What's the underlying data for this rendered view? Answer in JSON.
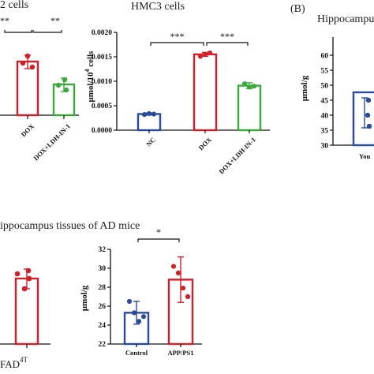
{
  "panel_labels": {
    "b": "(B)"
  },
  "top_left": {
    "title_fragment": "2 cells",
    "x_labels": [
      "DOX",
      "DOX+LDH-IN-1"
    ]
  },
  "hippocampus_fragment": {
    "title": "Hippocampus",
    "y_ticks": [
      "60",
      "55",
      "50",
      "45",
      "40",
      "35",
      "30"
    ],
    "ylabel": "μmol/g",
    "x_label": "You"
  },
  "bottom_left": {
    "title_fragment": "ippocampus tissues of AD mice",
    "x_label_base": "FAD",
    "x_label_sup": "4T"
  },
  "chart_data": [
    {
      "type": "bar",
      "title": "HMC3 cells",
      "ylabel_base": "μmol/10",
      "ylabel_sup": "4",
      "ylabel_tail": " cells",
      "ylim": [
        0,
        0.002
      ],
      "y_ticks": [
        "0.0020",
        "0.0015",
        "0.0010",
        "0.0005",
        "0.0000"
      ],
      "categories": [
        "NC",
        "DOX",
        "DOX+LDH-IN-1"
      ],
      "values": [
        0.00033,
        0.00155,
        0.00091
      ],
      "errors": [
        2e-05,
        4e-05,
        6e-05
      ],
      "points": [
        [
          0.00032,
          0.00034,
          0.00033
        ],
        [
          0.00151,
          0.00155,
          0.00158
        ],
        [
          0.00095,
          0.00088,
          0.0009
        ]
      ],
      "colors": [
        "#2b4a9a",
        "#d0202a",
        "#3aa83a"
      ],
      "significance": [
        {
          "from": 0,
          "to": 1,
          "label": "***"
        },
        {
          "from": 1,
          "to": 2,
          "label": "***"
        }
      ]
    },
    {
      "type": "bar",
      "title": "",
      "ylabel": "μmol/g",
      "ylim": [
        22,
        32
      ],
      "y_ticks": [
        "32",
        "30",
        "28",
        "26",
        "24",
        "22"
      ],
      "categories": [
        "Control",
        "APP/PS1"
      ],
      "values": [
        25.3,
        28.8
      ],
      "errors": [
        1.2,
        2.4
      ],
      "points": [
        [
          26.5,
          25.3,
          24.4,
          24.9
        ],
        [
          30.2,
          29.5,
          27.9,
          27.0
        ]
      ],
      "colors": [
        "#2b4a9a",
        "#d0202a"
      ],
      "significance": [
        {
          "from": 0,
          "to": 1,
          "label": "*"
        }
      ]
    }
  ],
  "stars_top_left": [
    "**",
    "**"
  ]
}
